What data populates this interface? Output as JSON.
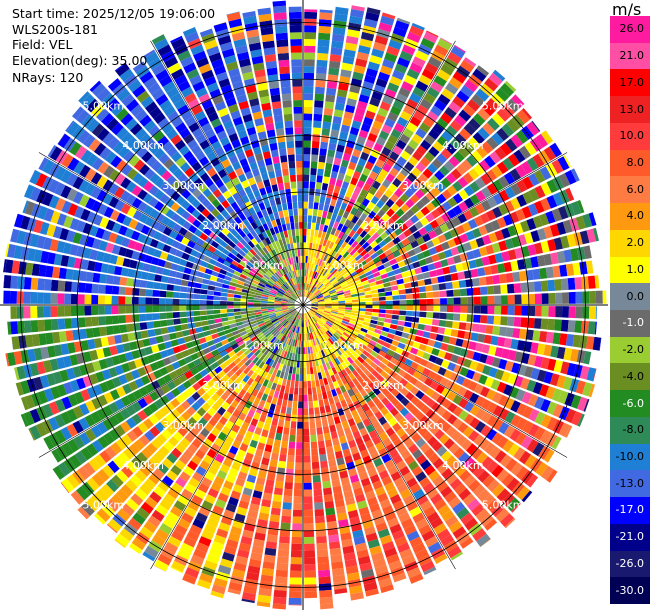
{
  "header": {
    "start_time": "Start time: 2025/12/05 19:06:00",
    "instrument": "WLS200s-181",
    "field": "Field: VEL",
    "elevation": "Elevation(deg): 35.00",
    "nrays": "NRays: 120"
  },
  "chart_data": {
    "type": "ppi",
    "field": "VEL",
    "elevation_deg": 35.0,
    "n_rays": 120,
    "max_range_km": 5.4,
    "range_rings_km": [
      1.0,
      2.0,
      3.0,
      4.0,
      5.0
    ],
    "ring_labels": [
      "1.00km",
      "2.00km",
      "3.00km",
      "4.00km",
      "5.00km"
    ],
    "colorbar": {
      "unit": "m/s",
      "ticks": [
        "26.0",
        "21.0",
        "17.0",
        "13.0",
        "10.0",
        "8.0",
        "6.0",
        "4.0",
        "2.0",
        "1.0",
        "0.0",
        "-1.0",
        "-2.0",
        "-4.0",
        "-6.0",
        "-8.0",
        "-10.0",
        "-13.0",
        "-17.0",
        "-21.0",
        "-26.0",
        "-30.0"
      ],
      "colors": [
        "#ff1ba0",
        "#ff4fa5",
        "#ff0000",
        "#ee2222",
        "#ff3b3b",
        "#ff5a2a",
        "#fe7b43",
        "#ff9a10",
        "#ffd700",
        "#ffff00",
        "#778899",
        "#6b6b6b",
        "#9acd32",
        "#6b8e23",
        "#228b22",
        "#2e8b57",
        "#1e7fd4",
        "#4169e1",
        "#0000ff",
        "#00008b",
        "#191970",
        "#000055"
      ]
    },
    "sector_pattern": {
      "north_east": "noisy multicolor",
      "south_east_to_south": "positive 6 to 21 m/s",
      "west_north_west": "negative -13 to -17 m/s",
      "west_south_west": "negative -6 to -10 m/s",
      "south_west": "positive 2 to 6 m/s",
      "near_center_west": "near zero / -2 m/s",
      "near_center_east": "positive 2 to 4 m/s"
    }
  }
}
